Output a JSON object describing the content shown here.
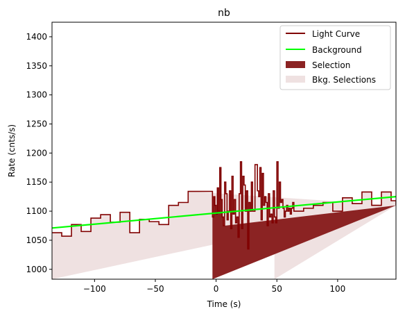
{
  "chart_data": {
    "type": "line",
    "title": "nb",
    "xlabel": "Time (s)",
    "ylabel": "Rate (cnts/s)",
    "xlim": [
      -135,
      148
    ],
    "ylim": [
      983,
      1425
    ],
    "xticks": [
      -100,
      -50,
      0,
      50,
      100
    ],
    "yticks": [
      1000,
      1050,
      1100,
      1150,
      1200,
      1250,
      1300,
      1350,
      1400
    ],
    "grid": false,
    "legend_placement": "top-right",
    "colors": {
      "light_curve": "#800000",
      "background": "#00ff00",
      "selection": "#8b2323",
      "bkg_selections": "#efe1e1"
    },
    "legend": [
      "Light Curve",
      "Background",
      "Selection",
      "Bkg. Selections"
    ],
    "light_curve": {
      "name": "Light Curve",
      "edges": [
        -135,
        -127,
        -119,
        -111,
        -103,
        -95,
        -87,
        -79,
        -71,
        -63,
        -55,
        -47,
        -39,
        -31,
        -23,
        -15,
        -7,
        -3,
        -2,
        -1,
        0,
        1,
        2,
        3,
        4,
        5,
        6,
        7,
        8,
        9,
        10,
        11,
        12,
        13,
        14,
        15,
        16,
        17,
        18,
        19,
        20,
        21,
        22,
        23,
        24,
        25,
        26,
        27,
        28,
        29,
        30,
        31,
        32,
        33,
        34,
        35,
        36,
        37,
        38,
        39,
        40,
        41,
        42,
        43,
        44,
        45,
        46,
        47,
        48,
        49,
        50,
        51,
        52,
        53,
        54,
        55,
        56,
        57,
        58,
        59,
        60,
        61,
        62,
        63,
        64,
        72,
        80,
        88,
        96,
        104,
        112,
        120,
        128,
        136,
        144,
        148
      ],
      "values": [
        1063,
        1057,
        1077,
        1065,
        1088,
        1094,
        1081,
        1098,
        1063,
        1086,
        1082,
        1077,
        1110,
        1115,
        1134,
        1134,
        1134,
        1090,
        1125,
        1110,
        1095,
        1140,
        1100,
        1175,
        1120,
        1090,
        1075,
        1150,
        1130,
        1085,
        1100,
        1135,
        1070,
        1160,
        1095,
        1120,
        1080,
        1090,
        1055,
        1130,
        1185,
        1070,
        1160,
        1145,
        1100,
        1135,
        1035,
        1115,
        1100,
        1150,
        1100,
        1100,
        1180,
        1180,
        1135,
        1125,
        1175,
        1085,
        1165,
        1110,
        1125,
        1115,
        1075,
        1130,
        1090,
        1095,
        1080,
        1135,
        1090,
        1080,
        1185,
        1105,
        1150,
        1115,
        1120,
        1105,
        1090,
        1100,
        1110,
        1100,
        1105,
        1095,
        1105,
        1115,
        1100,
        1105,
        1110,
        1115,
        1100,
        1123,
        1113,
        1133,
        1110,
        1133,
        1118,
        1110
      ]
    },
    "background": {
      "name": "Background",
      "x": [
        -135,
        148
      ],
      "y": [
        1071,
        1125
      ]
    },
    "selection": {
      "name": "Selection",
      "x": [
        -3,
        7
      ]
    },
    "bkg_selections": {
      "name": "Bkg. Selections",
      "ranges": [
        [
          -135,
          -22
        ],
        [
          48,
          148
        ]
      ]
    }
  }
}
